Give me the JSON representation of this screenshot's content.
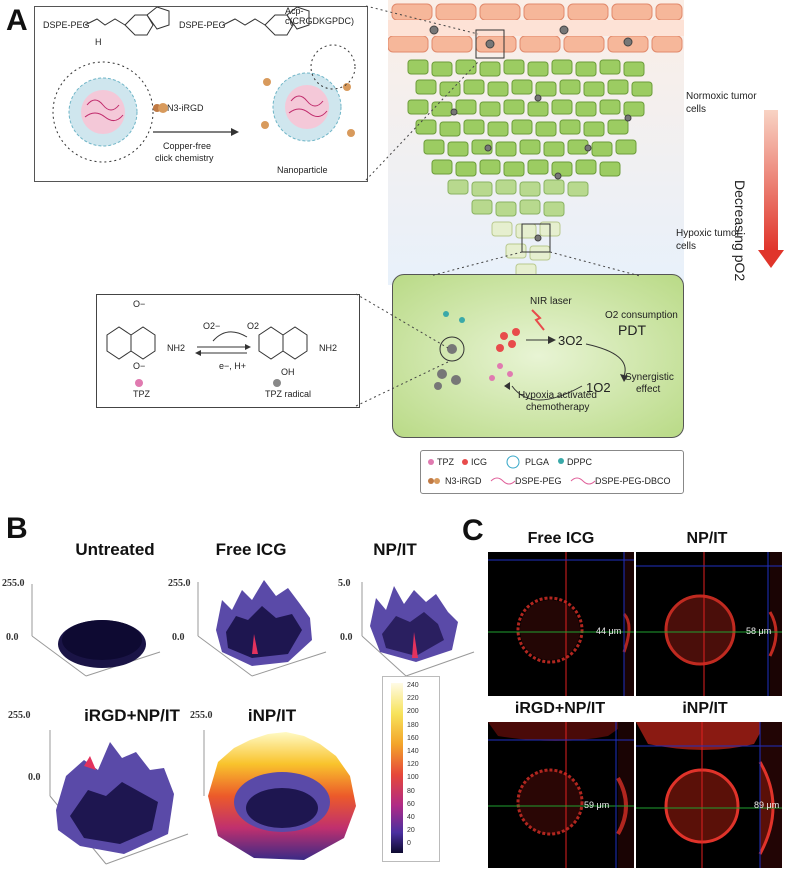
{
  "panels": {
    "a": "A",
    "b": "B",
    "c": "C"
  },
  "panel_a": {
    "top_box": {
      "left_mol": "DSPE-PEG",
      "nh": "H",
      "right_mol": "DSPE-PEG",
      "acp": "Acp-c(CRGDKGPDC)",
      "reagent": "N3-iRGD",
      "reaction_line1": "Copper-free",
      "reaction_line2": "click chemistry",
      "product": "Nanoparticle"
    },
    "tissue": {
      "normoxic": "Normoxic tumor cells",
      "hypoxic": "Hypoxic tumor cells",
      "gradient": "Decreasing pO2"
    },
    "tpz_box": {
      "o_minus_top": "O−",
      "o2_minus": "O2−",
      "o2": "O2",
      "electron": "e−, H+",
      "nh2_left": "NH2",
      "nh2_right": "NH2",
      "oh": "OH",
      "o_minus_bottom": "O−",
      "left_label": "TPZ",
      "right_label": "TPZ radical"
    },
    "mechanism": {
      "nir": "NIR laser",
      "o2_consumption": "O2 consumption",
      "pdt": "PDT",
      "triplet_o2": "3O2",
      "singlet_o2": "1O2",
      "synergy_line1": "Synergistic",
      "synergy_line2": "effect",
      "hypoxia_line1": "Hypoxia activated",
      "hypoxia_line2": "chemotherapy"
    },
    "legend": [
      "TPZ",
      "ICG",
      "PLGA",
      "DPPC",
      "N3-iRGD",
      "DSPE-PEG",
      "DSPE-PEG-DBCO"
    ]
  },
  "panel_b": {
    "plots": [
      {
        "title": "Untreated",
        "ymax": "255.0",
        "ymin": "0.0"
      },
      {
        "title": "Free ICG",
        "ymax": "255.0",
        "ymin": "0.0"
      },
      {
        "title": "NP/IT",
        "ymax": "5.0",
        "ymin": "0.0"
      },
      {
        "title": "iRGD+NP/IT",
        "ymax": "255.0",
        "ymin": "0.0"
      },
      {
        "title": "iNP/IT",
        "ymax": "255.0",
        "ymin": ""
      }
    ],
    "colorbar_ticks": [
      "240",
      "220",
      "200",
      "180",
      "160",
      "140",
      "120",
      "100",
      "80",
      "60",
      "40",
      "20",
      "0"
    ]
  },
  "panel_c": {
    "images": [
      {
        "title": "Free ICG",
        "depth": "44 μm"
      },
      {
        "title": "NP/IT",
        "depth": "58 μm"
      },
      {
        "title": "iRGD+NP/IT",
        "depth": "59 μm"
      },
      {
        "title": "iNP/IT",
        "depth": "89 μm"
      }
    ]
  },
  "colors": {
    "vessel": "#f6b79a",
    "cell": "#9ccc62",
    "nucleus": "#e0609a",
    "gradient_top": "#f8d3c4",
    "gradient_bottom": "#e0352b",
    "green_panel": "#cfe6a6"
  }
}
